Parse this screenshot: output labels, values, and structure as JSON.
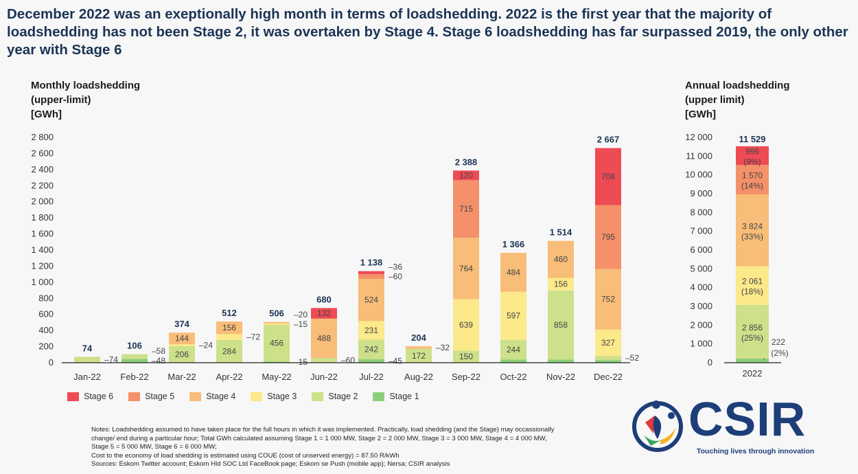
{
  "headline": "December 2022 was an exeptionally high month in terms of loadshedding. 2022 is the first year that the majority of loadshedding has not been Stage 2, it was overtaken by Stage 4. Stage 6 loadshedding has far surpassed 2019, the only other year with Stage 6",
  "legend": [
    {
      "label": "Stage 6",
      "color": "#ee4b55"
    },
    {
      "label": "Stage 5",
      "color": "#f4916a"
    },
    {
      "label": "Stage 4",
      "color": "#f8bd78"
    },
    {
      "label": "Stage 3",
      "color": "#fbe98a"
    },
    {
      "label": "Stage 2",
      "color": "#cde08a"
    },
    {
      "label": "Stage 1",
      "color": "#8ccf78"
    }
  ],
  "notes": [
    "Notes: Loadshedding assumed to have taken place for the full hours in which it was implemented.  Practically, load shedding (and the Stage) may occassionally change/ end during a particular hour; Total GWh calculated assuming Stage 1 = 1 000 MW, Stage 2 = 2 000 MW, Stage 3 = 3 000 MW, Stage 4 = 4 000 MW, Stage 5 = 5 000 MW, Stage 6 = 6 000 MW;",
    "Cost to the economy of load shedding is estimated using COUE (cost of unserved energy) = 87.50 R/kWh",
    "Sources: Eskom Twitter account; Eskom Hld SOC Ltd FaceBook page; Eskom se Push (mobile app); Nersa; CSIR analysis"
  ],
  "logo": {
    "text": "CSIR",
    "tagline": "Touching lives through innovation"
  },
  "chart_data": [
    {
      "type": "bar",
      "stacked": true,
      "title": "Monthly loadshedding\n(upper-limit)\n[GWh]",
      "ylim": [
        0,
        2800
      ],
      "yticks": [
        "0",
        "200",
        "400",
        "600",
        "800",
        "1 000",
        "1 200",
        "1 400",
        "1 600",
        "1 800",
        "2 000",
        "2 200",
        "2 400",
        "2 600",
        "2 800"
      ],
      "categories": [
        "Jan-22",
        "Feb-22",
        "Mar-22",
        "Apr-22",
        "May-22",
        "Jun-22",
        "Jul-22",
        "Aug-22",
        "Sep-22",
        "Oct-22",
        "Nov-22",
        "Dec-22"
      ],
      "totals": [
        "74",
        "106",
        "374",
        "512",
        "506",
        "680",
        "1 138",
        "204",
        "2 388",
        "1 366",
        "1 514",
        "2 667"
      ],
      "series": [
        {
          "name": "Stage 1",
          "values": [
            0,
            48,
            0,
            0,
            15,
            0,
            45,
            0,
            0,
            41,
            40,
            33
          ],
          "labeled": [
            false,
            true,
            false,
            false,
            true,
            false,
            true,
            false,
            false,
            false,
            false,
            false
          ]
        },
        {
          "name": "Stage 2",
          "values": [
            74,
            58,
            206,
            284,
            456,
            60,
            242,
            172,
            150,
            244,
            858,
            52
          ],
          "labeled": [
            true,
            true,
            true,
            true,
            true,
            true,
            true,
            true,
            true,
            true,
            true,
            true
          ]
        },
        {
          "name": "Stage 3",
          "values": [
            0,
            0,
            24,
            72,
            15,
            0,
            231,
            0,
            639,
            597,
            156,
            327
          ],
          "labeled": [
            false,
            false,
            true,
            true,
            true,
            false,
            true,
            false,
            true,
            true,
            true,
            true
          ]
        },
        {
          "name": "Stage 4",
          "values": [
            0,
            0,
            144,
            156,
            20,
            488,
            524,
            32,
            764,
            484,
            460,
            752
          ],
          "labeled": [
            false,
            false,
            true,
            true,
            true,
            true,
            true,
            true,
            true,
            true,
            true,
            true
          ]
        },
        {
          "name": "Stage 5",
          "values": [
            0,
            0,
            0,
            0,
            0,
            0,
            60,
            0,
            715,
            0,
            0,
            795
          ],
          "labeled": [
            false,
            false,
            false,
            false,
            false,
            false,
            true,
            false,
            true,
            false,
            false,
            true
          ]
        },
        {
          "name": "Stage 6",
          "values": [
            0,
            0,
            0,
            0,
            0,
            132,
            36,
            0,
            120,
            0,
            0,
            708
          ],
          "labeled": [
            false,
            false,
            false,
            false,
            false,
            true,
            true,
            false,
            true,
            false,
            false,
            true
          ]
        }
      ]
    },
    {
      "type": "bar",
      "stacked": true,
      "title": "Annual loadshedding\n(upper limit)\n[GWh]",
      "ylim": [
        0,
        12000
      ],
      "yticks": [
        "0",
        "1 000",
        "2 000",
        "3 000",
        "4 000",
        "5 000",
        "6 000",
        "7 000",
        "8 000",
        "9 000",
        "10 000",
        "11 000",
        "12 000"
      ],
      "categories": [
        "2022"
      ],
      "totals": [
        "11 529"
      ],
      "series": [
        {
          "name": "Stage 1",
          "values": [
            222
          ],
          "labels": [
            "222",
            "(2%)"
          ]
        },
        {
          "name": "Stage 2",
          "values": [
            2856
          ],
          "labels": [
            "2 856",
            "(25%)"
          ]
        },
        {
          "name": "Stage 3",
          "values": [
            2061
          ],
          "labels": [
            "2 061",
            "(18%)"
          ]
        },
        {
          "name": "Stage 4",
          "values": [
            3824
          ],
          "labels": [
            "3 824",
            "(33%)"
          ]
        },
        {
          "name": "Stage 5",
          "values": [
            1570
          ],
          "labels": [
            "1 570",
            "(14%)"
          ]
        },
        {
          "name": "Stage 6",
          "values": [
            996
          ],
          "labels": [
            "996",
            "(9%)"
          ]
        }
      ]
    }
  ]
}
